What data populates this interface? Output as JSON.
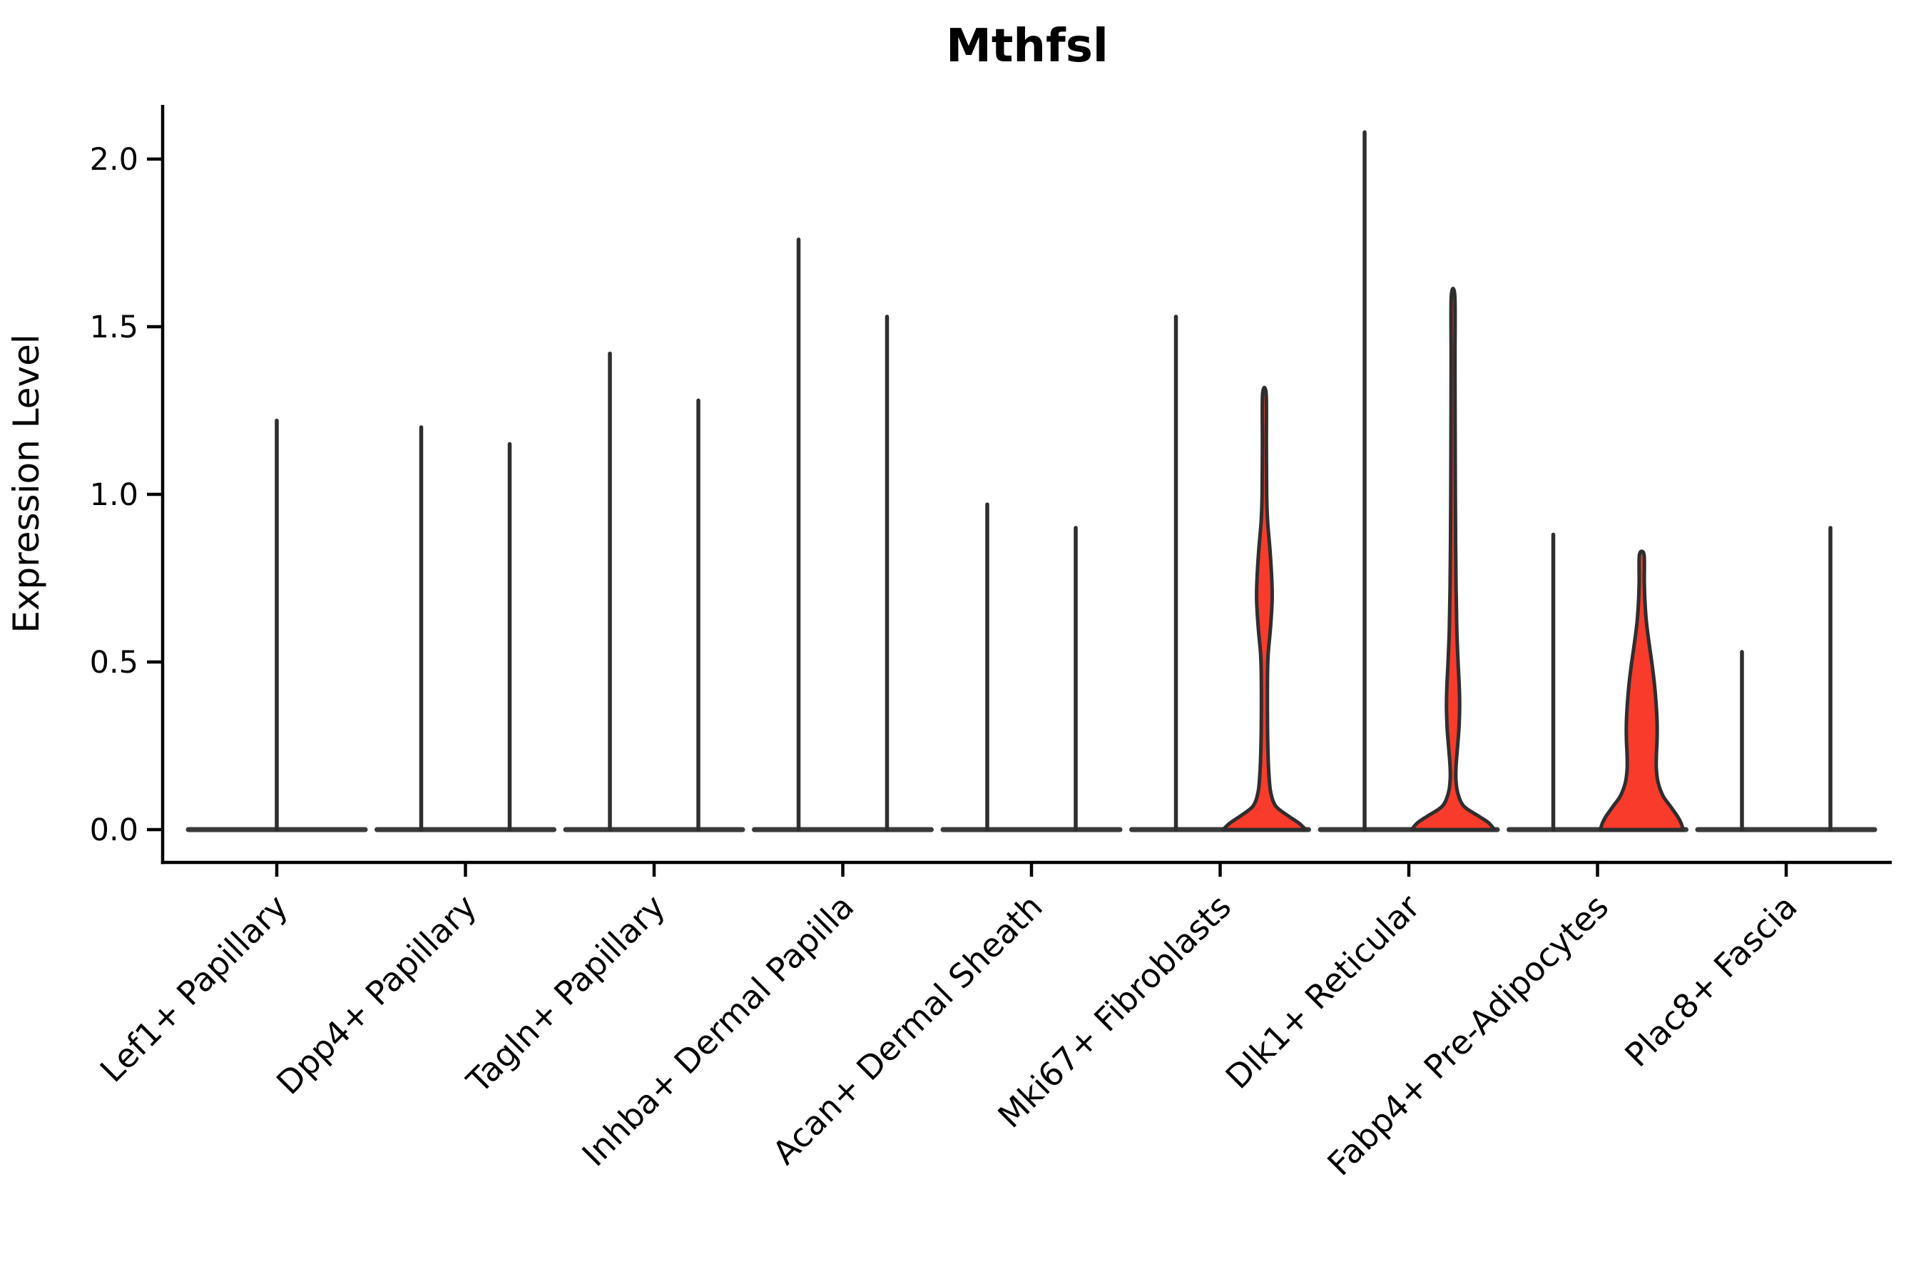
{
  "figure": {
    "background": "#ffffff"
  },
  "chart_data": {
    "type": "violin",
    "title": "Mthfsl",
    "ylabel": "Expression Level",
    "xlabel": "",
    "ylim": [
      -0.1,
      2.17
    ],
    "yticks": [
      0.0,
      0.5,
      1.0,
      1.5,
      2.0
    ],
    "ytick_labels": [
      "0.0",
      "0.5",
      "1.0",
      "1.5",
      "2.0"
    ],
    "grid": false,
    "legend": null,
    "x_label_rotation_deg": 45,
    "colors": {
      "violin_fill": "#F93B2C",
      "violin_outline": "#2E2E2E",
      "spike": "#2E2E2E",
      "baseline_bar": "#3A3A3A",
      "axis": "#000000",
      "text": "#000000"
    },
    "categories": [
      {
        "label": "Lef1+ Papillary",
        "violins": [
          {
            "position": "center",
            "max": 1.22,
            "filled": false
          }
        ]
      },
      {
        "label": "Dpp4+ Papillary",
        "violins": [
          {
            "position": "left",
            "max": 1.2,
            "filled": false
          },
          {
            "position": "right",
            "max": 1.15,
            "filled": false
          }
        ]
      },
      {
        "label": "Tagln+ Papillary",
        "violins": [
          {
            "position": "left",
            "max": 1.42,
            "filled": false
          },
          {
            "position": "right",
            "max": 1.28,
            "filled": false
          }
        ]
      },
      {
        "label": "Inhba+ Dermal Papilla",
        "violins": [
          {
            "position": "left",
            "max": 1.76,
            "filled": false
          },
          {
            "position": "right",
            "max": 1.53,
            "filled": false
          }
        ]
      },
      {
        "label": "Acan+ Dermal Sheath",
        "violins": [
          {
            "position": "left",
            "max": 0.97,
            "filled": false
          },
          {
            "position": "right",
            "max": 0.9,
            "filled": false
          }
        ]
      },
      {
        "label": "Mki67+ Fibroblasts",
        "violins": [
          {
            "position": "left",
            "max": 1.53,
            "filled": false
          },
          {
            "position": "right",
            "max": 1.3,
            "filled": true,
            "profile": "mki67-right"
          }
        ]
      },
      {
        "label": "Dlk1+ Reticular",
        "violins": [
          {
            "position": "left",
            "max": 2.08,
            "filled": false
          },
          {
            "position": "right",
            "max": 1.59,
            "filled": true,
            "profile": "dlk1-right"
          }
        ]
      },
      {
        "label": "Fabp4+ Pre-Adipocytes",
        "violins": [
          {
            "position": "left",
            "max": 0.88,
            "filled": false
          },
          {
            "position": "right",
            "max": 0.82,
            "filled": true,
            "profile": "fabp4-right"
          }
        ]
      },
      {
        "label": "Plac8+ Fascia",
        "violins": [
          {
            "position": "left",
            "max": 0.53,
            "filled": false
          },
          {
            "position": "right",
            "max": 0.9,
            "filled": false
          }
        ]
      }
    ],
    "profiles": {
      "mki67-right": [
        [
          1.3,
          2.5
        ],
        [
          1.15,
          2.8
        ],
        [
          1.0,
          3.2
        ],
        [
          0.92,
          4.5
        ],
        [
          0.83,
          8.0
        ],
        [
          0.74,
          10.5
        ],
        [
          0.68,
          10.8
        ],
        [
          0.6,
          8.5
        ],
        [
          0.53,
          5.5
        ],
        [
          0.48,
          4.5
        ],
        [
          0.4,
          4.2
        ],
        [
          0.3,
          4.4
        ],
        [
          0.22,
          5.2
        ],
        [
          0.16,
          6.5
        ],
        [
          0.11,
          9.0
        ],
        [
          0.07,
          16.0
        ],
        [
          0.04,
          34.0
        ],
        [
          0.02,
          48.0
        ],
        [
          0.0,
          58.0
        ]
      ],
      "dlk1-right": [
        [
          1.59,
          2.5
        ],
        [
          1.4,
          2.7
        ],
        [
          1.2,
          2.9
        ],
        [
          1.0,
          3.2
        ],
        [
          0.85,
          3.6
        ],
        [
          0.72,
          4.2
        ],
        [
          0.6,
          5.2
        ],
        [
          0.5,
          7.0
        ],
        [
          0.42,
          8.8
        ],
        [
          0.36,
          9.2
        ],
        [
          0.3,
          8.2
        ],
        [
          0.24,
          6.0
        ],
        [
          0.19,
          4.2
        ],
        [
          0.15,
          4.0
        ],
        [
          0.11,
          6.5
        ],
        [
          0.07,
          15.0
        ],
        [
          0.04,
          36.0
        ],
        [
          0.02,
          50.0
        ],
        [
          0.0,
          58.0
        ]
      ],
      "fabp4-right": [
        [
          0.82,
          3.2
        ],
        [
          0.74,
          3.6
        ],
        [
          0.68,
          4.5
        ],
        [
          0.62,
          6.5
        ],
        [
          0.56,
          10.0
        ],
        [
          0.5,
          14.0
        ],
        [
          0.44,
          17.5
        ],
        [
          0.38,
          20.0
        ],
        [
          0.32,
          21.5
        ],
        [
          0.27,
          21.5
        ],
        [
          0.22,
          20.5
        ],
        [
          0.18,
          20.5
        ],
        [
          0.14,
          23.0
        ],
        [
          0.1,
          30.0
        ],
        [
          0.07,
          40.0
        ],
        [
          0.04,
          50.0
        ],
        [
          0.02,
          55.0
        ],
        [
          0.0,
          58.0
        ]
      ]
    }
  }
}
